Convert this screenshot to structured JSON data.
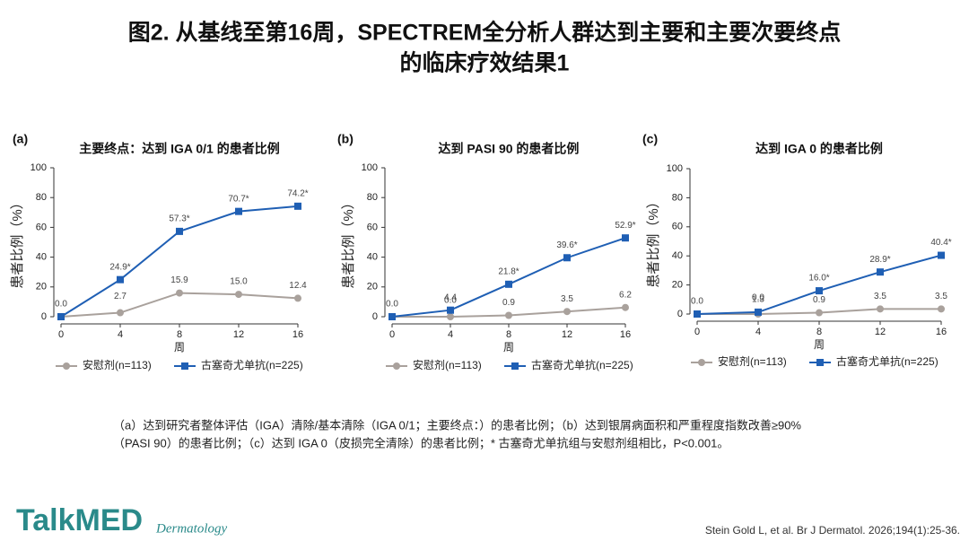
{
  "header": {
    "title_line1": "图2. 从基线至第16周，SPECTREM全分析人群达到主要和主要次要终点",
    "title_line2": "的临床疗效结果1"
  },
  "chart_data": [
    {
      "type": "line",
      "panel": "(a)",
      "title": "主要终点：达到 IGA 0/1 的患者比例",
      "x_label": "周",
      "y_label": "患者比例（%）",
      "x": [
        0,
        4,
        8,
        12,
        16
      ],
      "xlim": [
        0,
        16
      ],
      "xticks": [
        0,
        4,
        8,
        12,
        16
      ],
      "ylim": [
        0,
        100
      ],
      "yticks": [
        0,
        20,
        40,
        60,
        80,
        100
      ],
      "series": [
        {
          "name": "安慰剂(n=113)",
          "color": "#a9a19c",
          "values": [
            0.0,
            2.7,
            15.9,
            15.0,
            12.4
          ],
          "value_labels": [
            null,
            "2.7",
            "15.9",
            "15.0",
            "12.4"
          ]
        },
        {
          "name": "古塞奇尤单抗(n=225)",
          "color": "#1f5fb4",
          "values": [
            0.0,
            24.9,
            57.3,
            70.7,
            74.2
          ],
          "value_labels": [
            "0.0",
            "24.9*",
            "57.3*",
            "70.7*",
            "74.2*"
          ]
        }
      ]
    },
    {
      "type": "line",
      "panel": "(b)",
      "title": "达到 PASI 90 的患者比例",
      "x_label": "周",
      "y_label": "患者比例（%）",
      "x": [
        0,
        4,
        8,
        12,
        16
      ],
      "xlim": [
        0,
        16
      ],
      "xticks": [
        0,
        4,
        8,
        12,
        16
      ],
      "ylim": [
        0,
        100
      ],
      "yticks": [
        0,
        20,
        40,
        60,
        80,
        100
      ],
      "series": [
        {
          "name": "安慰剂(n=113)",
          "color": "#a9a19c",
          "values": [
            0.0,
            0.0,
            0.9,
            3.5,
            6.2
          ],
          "value_labels": [
            null,
            "0.0",
            "0.9",
            "3.5",
            "6.2"
          ]
        },
        {
          "name": "古塞奇尤单抗(n=225)",
          "color": "#1f5fb4",
          "values": [
            0.0,
            4.4,
            21.8,
            39.6,
            52.9
          ],
          "value_labels": [
            "0.0",
            "4.4",
            "21.8*",
            "39.6*",
            "52.9*"
          ]
        }
      ]
    },
    {
      "type": "line",
      "panel": "(c)",
      "title": "达到 IGA 0 的患者比例",
      "x_label": "周",
      "y_label": "患者比例（%）",
      "x": [
        0,
        4,
        8,
        12,
        16
      ],
      "xlim": [
        0,
        16
      ],
      "xticks": [
        0,
        4,
        8,
        12,
        16
      ],
      "ylim": [
        0,
        100
      ],
      "yticks": [
        0,
        20,
        40,
        60,
        80,
        100
      ],
      "series": [
        {
          "name": "安慰剂(n=113)",
          "color": "#a9a19c",
          "values": [
            0.0,
            0.0,
            0.9,
            3.5,
            3.5
          ],
          "value_labels": [
            null,
            "0.0",
            "0.9",
            "3.5",
            "3.5"
          ]
        },
        {
          "name": "古塞奇尤单抗(n=225)",
          "color": "#1f5fb4",
          "values": [
            0.0,
            1.3,
            16.0,
            28.9,
            40.4
          ],
          "value_labels": [
            "0.0",
            "1.3",
            "16.0*",
            "28.9*",
            "40.4*"
          ]
        }
      ]
    }
  ],
  "footnote": {
    "line1": "（a）达到研究者整体评估（IGA）清除/基本清除（IGA 0/1；主要终点：）的患者比例；（b）达到银屑病面积和严重程度指数改善≥90%",
    "line2": "（PASI 90）的患者比例；（c）达到 IGA 0（皮损完全清除）的患者比例；* 古塞奇尤单抗组与安慰剂组相比，P<0.001。"
  },
  "logo": {
    "brand": "TalkMED",
    "sub": "Dermatology"
  },
  "citation": "Stein Gold L, et al. Br J Dermatol. 2026;194(1):25-36."
}
